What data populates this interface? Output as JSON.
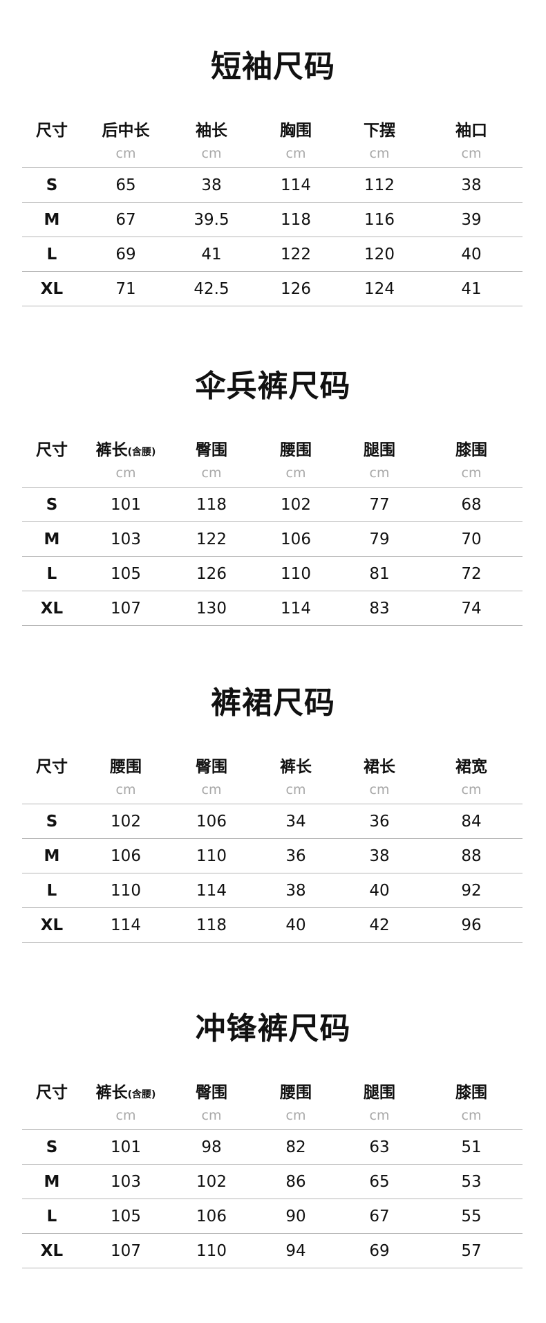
{
  "sections": [
    {
      "title": "短袖尺码",
      "headers": [
        {
          "label": "尺寸",
          "note": "",
          "unit": ""
        },
        {
          "label": "后中长",
          "note": "",
          "unit": "cm"
        },
        {
          "label": "袖长",
          "note": "",
          "unit": "cm"
        },
        {
          "label": "胸围",
          "note": "",
          "unit": "cm"
        },
        {
          "label": "下摆",
          "note": "",
          "unit": "cm"
        },
        {
          "label": "袖口",
          "note": "",
          "unit": "cm"
        }
      ],
      "rows": [
        [
          "S",
          "65",
          "38",
          "114",
          "112",
          "38"
        ],
        [
          "M",
          "67",
          "39.5",
          "118",
          "116",
          "39"
        ],
        [
          "L",
          "69",
          "41",
          "122",
          "120",
          "40"
        ],
        [
          "XL",
          "71",
          "42.5",
          "126",
          "124",
          "41"
        ]
      ]
    },
    {
      "title": "伞兵裤尺码",
      "headers": [
        {
          "label": "尺寸",
          "note": "",
          "unit": ""
        },
        {
          "label": "裤长",
          "note": "(含腰)",
          "unit": "cm"
        },
        {
          "label": "臀围",
          "note": "",
          "unit": "cm"
        },
        {
          "label": "腰围",
          "note": "",
          "unit": "cm"
        },
        {
          "label": "腿围",
          "note": "",
          "unit": "cm"
        },
        {
          "label": "膝围",
          "note": "",
          "unit": "cm"
        }
      ],
      "rows": [
        [
          "S",
          "101",
          "118",
          "102",
          "77",
          "68"
        ],
        [
          "M",
          "103",
          "122",
          "106",
          "79",
          "70"
        ],
        [
          "L",
          "105",
          "126",
          "110",
          "81",
          "72"
        ],
        [
          "XL",
          "107",
          "130",
          "114",
          "83",
          "74"
        ]
      ]
    },
    {
      "title": "裤裙尺码",
      "headers": [
        {
          "label": "尺寸",
          "note": "",
          "unit": ""
        },
        {
          "label": "腰围",
          "note": "",
          "unit": "cm"
        },
        {
          "label": "臀围",
          "note": "",
          "unit": "cm"
        },
        {
          "label": "裤长",
          "note": "",
          "unit": "cm"
        },
        {
          "label": "裙长",
          "note": "",
          "unit": "cm"
        },
        {
          "label": "裙宽",
          "note": "",
          "unit": "cm"
        }
      ],
      "rows": [
        [
          "S",
          "102",
          "106",
          "34",
          "36",
          "84"
        ],
        [
          "M",
          "106",
          "110",
          "36",
          "38",
          "88"
        ],
        [
          "L",
          "110",
          "114",
          "38",
          "40",
          "92"
        ],
        [
          "XL",
          "114",
          "118",
          "40",
          "42",
          "96"
        ]
      ]
    },
    {
      "title": "冲锋裤尺码",
      "headers": [
        {
          "label": "尺寸",
          "note": "",
          "unit": ""
        },
        {
          "label": "裤长",
          "note": "(含腰)",
          "unit": "cm"
        },
        {
          "label": "臀围",
          "note": "",
          "unit": "cm"
        },
        {
          "label": "腰围",
          "note": "",
          "unit": "cm"
        },
        {
          "label": "腿围",
          "note": "",
          "unit": "cm"
        },
        {
          "label": "膝围",
          "note": "",
          "unit": "cm"
        }
      ],
      "rows": [
        [
          "S",
          "101",
          "98",
          "82",
          "63",
          "51"
        ],
        [
          "M",
          "103",
          "102",
          "86",
          "65",
          "53"
        ],
        [
          "L",
          "105",
          "106",
          "90",
          "67",
          "55"
        ],
        [
          "XL",
          "107",
          "110",
          "94",
          "69",
          "57"
        ]
      ]
    }
  ]
}
